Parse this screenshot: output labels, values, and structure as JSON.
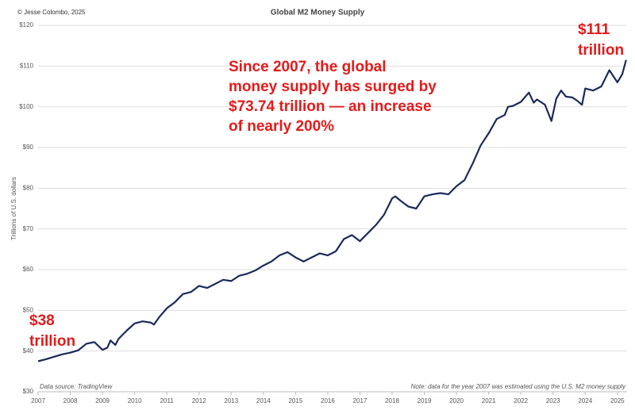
{
  "chart_data": {
    "type": "line",
    "title": "Global M2 Money Supply",
    "copyright": "© Jesse Colombo, 2025",
    "y_label": "Trillions of U.S. dollars",
    "annotation": [
      "Since 2007, the global",
      "money supply has surged by",
      "$73.74 trillion — an increase",
      "of nearly 200%"
    ],
    "start_label": [
      "$38",
      "trillion"
    ],
    "end_label": [
      "$111",
      "trillion"
    ],
    "source": "Data source: TradingView",
    "note": "Note: data for the year 2007 was estimated using the U.S. M2 money supply",
    "color": "#1c2a5a",
    "grid": true,
    "x": [
      2007.0,
      2007.25,
      2007.5,
      2007.75,
      2008.0,
      2008.25,
      2008.5,
      2008.75,
      2009.0,
      2009.15,
      2009.25,
      2009.4,
      2009.5,
      2009.75,
      2010.0,
      2010.25,
      2010.5,
      2010.6,
      2010.75,
      2011.0,
      2011.25,
      2011.5,
      2011.75,
      2012.0,
      2012.25,
      2012.5,
      2012.75,
      2013.0,
      2013.25,
      2013.5,
      2013.75,
      2014.0,
      2014.25,
      2014.5,
      2014.75,
      2015.0,
      2015.25,
      2015.5,
      2015.75,
      2016.0,
      2016.25,
      2016.5,
      2016.75,
      2017.0,
      2017.25,
      2017.5,
      2017.75,
      2018.0,
      2018.1,
      2018.25,
      2018.5,
      2018.75,
      2019.0,
      2019.25,
      2019.5,
      2019.75,
      2020.0,
      2020.25,
      2020.5,
      2020.75,
      2021.0,
      2021.25,
      2021.5,
      2021.6,
      2021.75,
      2022.0,
      2022.25,
      2022.4,
      2022.5,
      2022.75,
      2022.95,
      2023.1,
      2023.25,
      2023.4,
      2023.6,
      2023.75,
      2023.9,
      2024.0,
      2024.25,
      2024.5,
      2024.75,
      2025.0,
      2025.15,
      2025.27
    ],
    "values": [
      37.5,
      38.0,
      38.6,
      39.2,
      39.6,
      40.2,
      41.8,
      42.2,
      40.3,
      40.8,
      42.6,
      41.5,
      43.0,
      45.0,
      46.8,
      47.3,
      47.0,
      46.5,
      48.2,
      50.5,
      52.0,
      54.0,
      54.5,
      56.0,
      55.5,
      56.5,
      57.5,
      57.2,
      58.5,
      59.0,
      59.8,
      61.0,
      62.0,
      63.5,
      64.3,
      63.0,
      62.0,
      63.0,
      64.0,
      63.5,
      64.5,
      67.5,
      68.5,
      67.0,
      69.0,
      71.0,
      73.5,
      77.5,
      78.0,
      77.0,
      75.5,
      75.0,
      78.0,
      78.5,
      78.8,
      78.5,
      80.5,
      82.0,
      86.0,
      90.5,
      93.5,
      97.0,
      98.0,
      100.0,
      100.2,
      101.2,
      103.5,
      101.0,
      101.8,
      100.5,
      96.5,
      102.0,
      104.0,
      102.5,
      102.3,
      101.5,
      100.5,
      104.5,
      104.0,
      105.0,
      109.0,
      106.0,
      108.0,
      111.5
    ],
    "xlim": [
      2007,
      2025.3
    ],
    "xticks": [
      2007,
      2008,
      2009,
      2010,
      2011,
      2012,
      2013,
      2014,
      2015,
      2016,
      2017,
      2018,
      2019,
      2020,
      2021,
      2022,
      2023,
      2024,
      2025
    ],
    "ylim": [
      30,
      120
    ],
    "yticks": [
      {
        "value": 30,
        "label": "$30"
      },
      {
        "value": 40,
        "label": "$40"
      },
      {
        "value": 50,
        "label": "$50"
      },
      {
        "value": 60,
        "label": "$60"
      },
      {
        "value": 70,
        "label": "$70"
      },
      {
        "value": 80,
        "label": "$80"
      },
      {
        "value": 90,
        "label": "$90"
      },
      {
        "value": 100,
        "label": "$100"
      },
      {
        "value": 110,
        "label": "$110"
      },
      {
        "value": 120,
        "label": "$120"
      }
    ]
  }
}
